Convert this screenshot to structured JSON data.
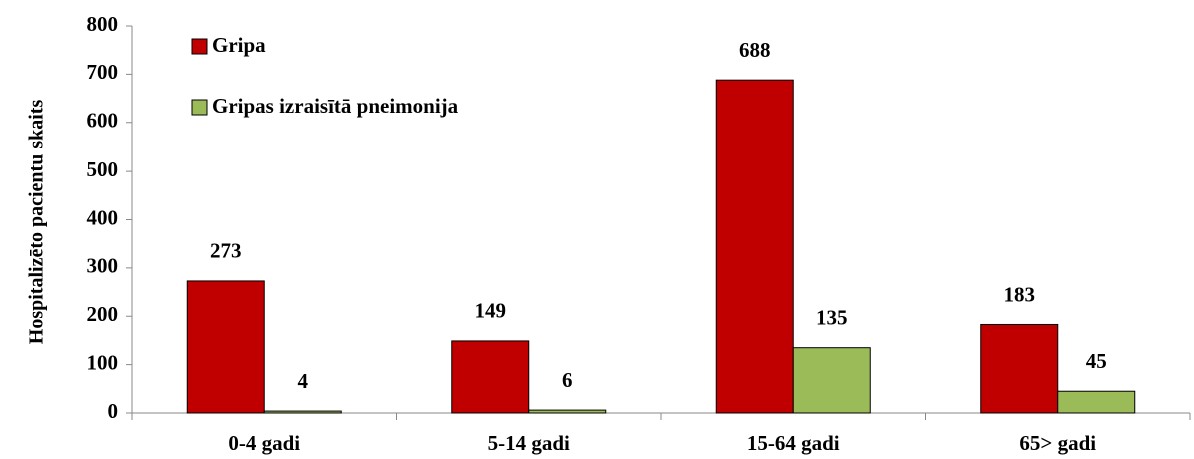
{
  "chart_data": {
    "type": "bar",
    "y_label": "Hospitalizēto pacientu skaits",
    "categories": [
      "0-4 gadi",
      "5-14 gadi",
      "15-64 gadi",
      "65> gadi"
    ],
    "series": [
      {
        "name": "Gripa",
        "color": "#c00000",
        "values": [
          273,
          149,
          688,
          183
        ]
      },
      {
        "name": "Gripas izraisītā pneimonija",
        "color": "#9bbb59",
        "values": [
          4,
          6,
          135,
          45
        ]
      }
    ],
    "ylim": [
      0,
      800
    ],
    "yticks": [
      0,
      100,
      200,
      300,
      400,
      500,
      600,
      700,
      800
    ],
    "legend": "upper left",
    "grid": false
  }
}
